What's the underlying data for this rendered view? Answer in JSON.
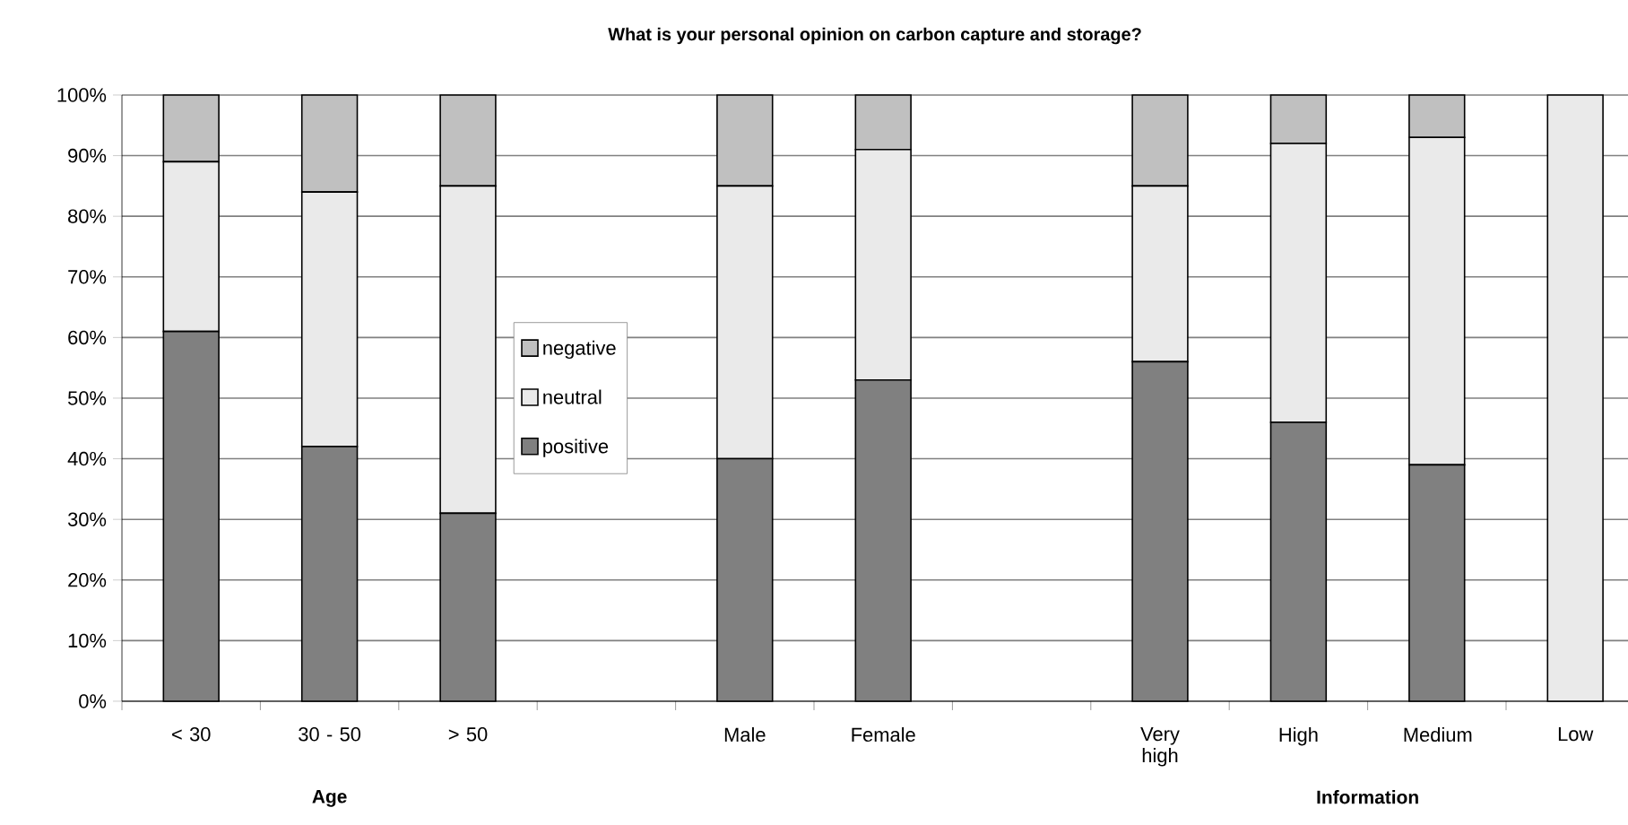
{
  "chart_data": {
    "type": "bar",
    "stacked": true,
    "title": "What is your personal opinion on carbon capture and storage?",
    "categories": [
      "< 30",
      "30 - 50",
      "> 50",
      null,
      "Male",
      "Female",
      null,
      "Very high",
      "High",
      "Medium",
      "Low"
    ],
    "series": [
      {
        "name": "positive",
        "color": "#808080",
        "values": [
          61,
          42,
          31,
          null,
          40,
          53,
          null,
          56,
          46,
          39,
          0
        ]
      },
      {
        "name": "neutral",
        "color": "#eaeaea",
        "values": [
          28,
          42,
          54,
          null,
          45,
          38,
          null,
          29,
          46,
          54,
          100
        ]
      },
      {
        "name": "negative",
        "color": "#c0c0c0",
        "values": [
          11,
          16,
          15,
          null,
          15,
          9,
          null,
          15,
          8,
          7,
          0
        ]
      }
    ],
    "ylim": [
      0,
      100
    ],
    "yticks": [
      {
        "value": 0,
        "label": "0%"
      },
      {
        "value": 10,
        "label": "10%"
      },
      {
        "value": 20,
        "label": "20%"
      },
      {
        "value": 30,
        "label": "30%"
      },
      {
        "value": 40,
        "label": "40%"
      },
      {
        "value": 50,
        "label": "50%"
      },
      {
        "value": 60,
        "label": "60%"
      },
      {
        "value": 70,
        "label": "70%"
      },
      {
        "value": 80,
        "label": "80%"
      },
      {
        "value": 90,
        "label": "90%"
      },
      {
        "value": 100,
        "label": "100%"
      }
    ],
    "grid": "y",
    "legend": "left",
    "annotations": [
      "Age",
      "Information"
    ]
  }
}
